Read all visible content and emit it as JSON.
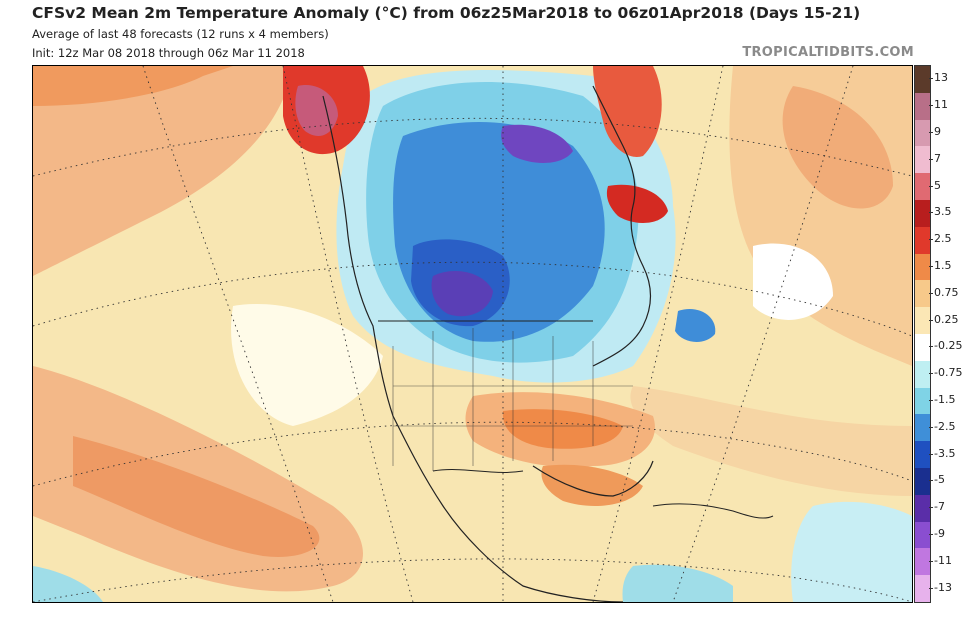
{
  "header": {
    "title": "CFSv2 Mean 2m Temperature Anomaly (°C) from 06z25Mar2018 to 06z01Apr2018 (Days 15-21)",
    "subtitle": "Average of last 48 forecasts (12 runs x 4 members)",
    "init": "Init: 12z Mar 08 2018 through 06z Mar 11 2018",
    "source": "TROPICALTIDBITS.COM"
  },
  "colorbar": {
    "labels": [
      "13",
      "11",
      "9",
      "7",
      "5",
      "3.5",
      "2.5",
      "1.5",
      "0.75",
      "0.25",
      "-0.25",
      "-0.75",
      "-1.5",
      "-2.5",
      "-3.5",
      "-5",
      "-7",
      "-9",
      "-11",
      "-13"
    ],
    "colors": [
      "#5b3a2a",
      "#b86f88",
      "#d79ab0",
      "#f0bcd0",
      "#e06a72",
      "#b81e1e",
      "#e0392b",
      "#ef8a48",
      "#f7c98a",
      "#fbe7b5",
      "#ffffff",
      "#bfeff2",
      "#7fd3e6",
      "#3f8fd8",
      "#1f50c0",
      "#1a2f8f",
      "#5a2ea8",
      "#8a4ed0",
      "#c077e0",
      "#e7b2ec"
    ]
  },
  "map": {
    "region": "North America",
    "anomaly_areas": [
      {
        "name": "central-canada-cold",
        "level": "-3.5"
      },
      {
        "name": "hudson-bay-cold",
        "level": "-2.5"
      },
      {
        "name": "baffin-cold-core",
        "level": "-7"
      },
      {
        "name": "alaska-warm",
        "level": "5"
      },
      {
        "name": "greenland-warm",
        "level": "3.5"
      },
      {
        "name": "labrador-warm",
        "level": "3.5"
      },
      {
        "name": "southern-us-warm",
        "level": "1.5"
      },
      {
        "name": "north-pacific-warm",
        "level": "1.5"
      },
      {
        "name": "atlantic-cold-spot",
        "level": "-1.5"
      }
    ]
  }
}
